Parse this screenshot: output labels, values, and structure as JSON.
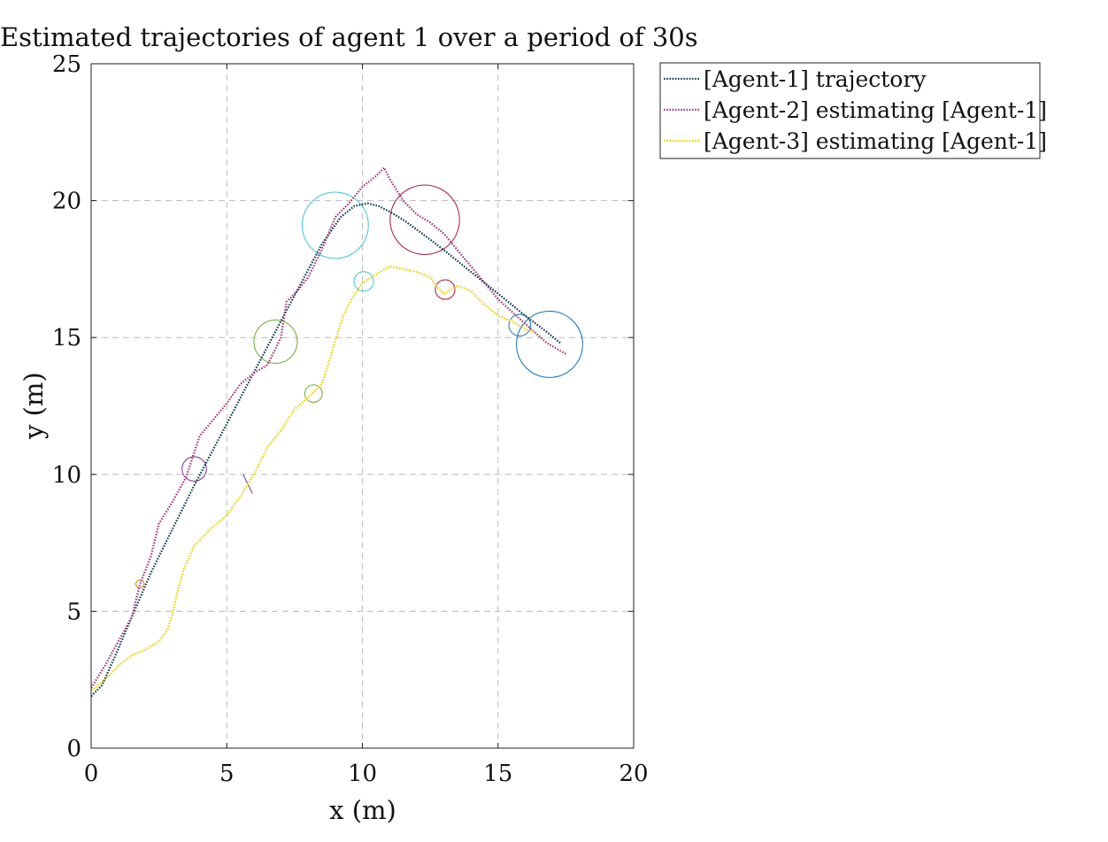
{
  "chart_data": {
    "type": "line",
    "title": "Estimated trajectories of agent 1 over a period of 30s",
    "xlabel": "x (m)",
    "ylabel": "y (m)",
    "xlim": [
      0,
      20
    ],
    "ylim": [
      0,
      25
    ],
    "xticks": [
      "0",
      "5",
      "10",
      "15",
      "20"
    ],
    "yticks": [
      "0",
      "5",
      "10",
      "15",
      "20",
      "25"
    ],
    "grid": true,
    "legend_position": "outside-top-right",
    "series": [
      {
        "name": "[Agent-1] trajectory",
        "color": "#0b3d4e",
        "style": "dotted",
        "x": [
          0.0,
          0.4,
          0.9,
          1.5,
          2.2,
          3.0,
          3.8,
          4.6,
          5.4,
          6.2,
          7.0,
          7.8,
          8.5,
          9.2,
          9.7,
          10.2,
          10.6,
          11.0,
          11.5,
          12.2,
          13.0,
          14.0,
          15.0,
          16.0,
          16.8,
          17.3
        ],
        "y": [
          1.9,
          2.3,
          3.4,
          4.8,
          6.4,
          8.0,
          9.6,
          11.1,
          12.6,
          14.1,
          15.6,
          17.1,
          18.4,
          19.4,
          19.8,
          19.9,
          19.8,
          19.6,
          19.3,
          18.8,
          18.2,
          17.4,
          16.6,
          15.8,
          15.2,
          14.8
        ]
      },
      {
        "name": "[Agent-2] estimating [Agent-1]",
        "color": "#a03a7a",
        "style": "dotted",
        "x": [
          0.0,
          0.5,
          1.0,
          1.5,
          1.8,
          2.2,
          2.5,
          3.0,
          3.5,
          4.0,
          4.5,
          5.0,
          5.5,
          6.0,
          6.5,
          7.0,
          7.2,
          7.6,
          8.0,
          8.5,
          9.0,
          9.5,
          10.0,
          10.5,
          10.8,
          11.0,
          11.5,
          12.0,
          12.5,
          13.0,
          14.0,
          15.0,
          16.0,
          16.8,
          17.5
        ],
        "y": [
          2.2,
          3.0,
          3.9,
          4.8,
          6.0,
          7.0,
          8.2,
          9.0,
          9.9,
          11.4,
          12.0,
          12.6,
          13.3,
          13.7,
          14.0,
          15.0,
          16.3,
          16.7,
          17.2,
          18.2,
          19.4,
          19.9,
          20.5,
          20.9,
          21.2,
          20.8,
          20.0,
          19.5,
          19.2,
          18.8,
          17.6,
          16.4,
          15.5,
          14.8,
          14.4
        ]
      },
      {
        "name": "[Agent-3] estimating [Agent-1]",
        "color": "#e8d400",
        "style": "dotted",
        "x": [
          0.0,
          0.5,
          1.0,
          1.5,
          2.0,
          2.5,
          2.8,
          3.0,
          3.2,
          3.4,
          3.8,
          4.5,
          5.0,
          5.5,
          6.0,
          6.5,
          7.0,
          7.5,
          8.0,
          8.5,
          8.8,
          9.0,
          9.3,
          9.6,
          10.0,
          10.5,
          11.0,
          11.5,
          12.0,
          12.5,
          12.8,
          13.0,
          13.5,
          14.0,
          14.5,
          15.0,
          15.5,
          16.0,
          16.3
        ],
        "y": [
          2.1,
          2.5,
          3.0,
          3.4,
          3.6,
          3.9,
          4.3,
          4.9,
          5.8,
          6.5,
          7.4,
          8.1,
          8.5,
          9.2,
          10.0,
          11.0,
          11.6,
          12.4,
          12.8,
          13.3,
          14.2,
          14.9,
          15.8,
          16.4,
          17.0,
          17.3,
          17.6,
          17.5,
          17.4,
          17.2,
          16.8,
          16.6,
          16.9,
          16.7,
          16.2,
          15.8,
          15.6,
          15.3,
          15.2
        ]
      }
    ],
    "annotations": [
      {
        "shape": "circle",
        "cx": 1.8,
        "cy": 6.0,
        "r": 0.15,
        "color": "#e07b00"
      },
      {
        "shape": "circle",
        "cx": 3.8,
        "cy": 10.2,
        "r": 0.45,
        "color": "#7b2a90"
      },
      {
        "shape": "line",
        "x1": 5.6,
        "y1": 10.0,
        "x2": 5.95,
        "y2": 9.3,
        "color": "#7b2a90"
      },
      {
        "shape": "circle",
        "cx": 6.8,
        "cy": 14.85,
        "r": 0.8,
        "color": "#6aa82e"
      },
      {
        "shape": "circle",
        "cx": 8.2,
        "cy": 12.95,
        "r": 0.32,
        "color": "#6aa82e"
      },
      {
        "shape": "circle",
        "cx": 9.0,
        "cy": 19.1,
        "r": 1.22,
        "color": "#44c2d8"
      },
      {
        "shape": "circle",
        "cx": 10.05,
        "cy": 17.05,
        "r": 0.36,
        "color": "#44c2d8"
      },
      {
        "shape": "circle",
        "cx": 12.3,
        "cy": 19.3,
        "r": 1.28,
        "color": "#a8163a"
      },
      {
        "shape": "circle",
        "cx": 13.05,
        "cy": 16.75,
        "r": 0.36,
        "color": "#a8163a"
      },
      {
        "shape": "circle",
        "cx": 15.8,
        "cy": 15.45,
        "r": 0.4,
        "color": "#0f72b8"
      },
      {
        "shape": "circle",
        "cx": 16.9,
        "cy": 14.75,
        "r": 1.22,
        "color": "#0f72b8"
      }
    ]
  }
}
